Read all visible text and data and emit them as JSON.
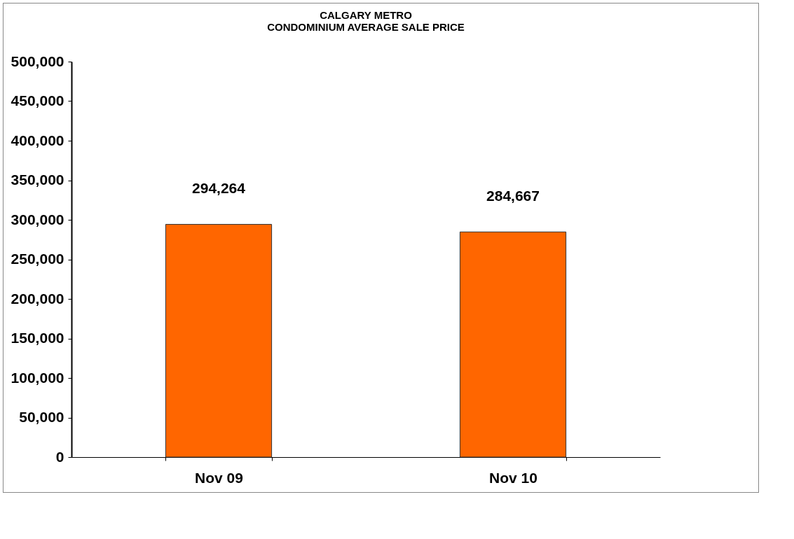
{
  "chart_data": {
    "type": "bar",
    "title": "CALGARY METRO\nCONDOMINIUM AVERAGE SALE PRICE",
    "categories": [
      "Nov 09",
      "Nov 10"
    ],
    "values": [
      294264,
      284667
    ],
    "value_labels": [
      "294,264",
      "284,667"
    ],
    "color": "#ff6600",
    "ylim": [
      0,
      500000
    ],
    "yticks": [
      0,
      {
        "value": 50000,
        "label": "50,000"
      },
      {
        "value": 100000,
        "label": "100,000"
      },
      {
        "value": 150000,
        "label": "150,000"
      },
      {
        "value": 200000,
        "label": "200,000"
      },
      {
        "value": 250000,
        "label": "250,000"
      },
      {
        "value": 300000,
        "label": "300,000"
      },
      {
        "value": 350000,
        "label": "350,000"
      },
      {
        "value": 400000,
        "label": "400,000"
      },
      {
        "value": 450000,
        "label": "450,000"
      },
      {
        "value": 500000,
        "label": "500,000"
      }
    ],
    "grid": false
  }
}
